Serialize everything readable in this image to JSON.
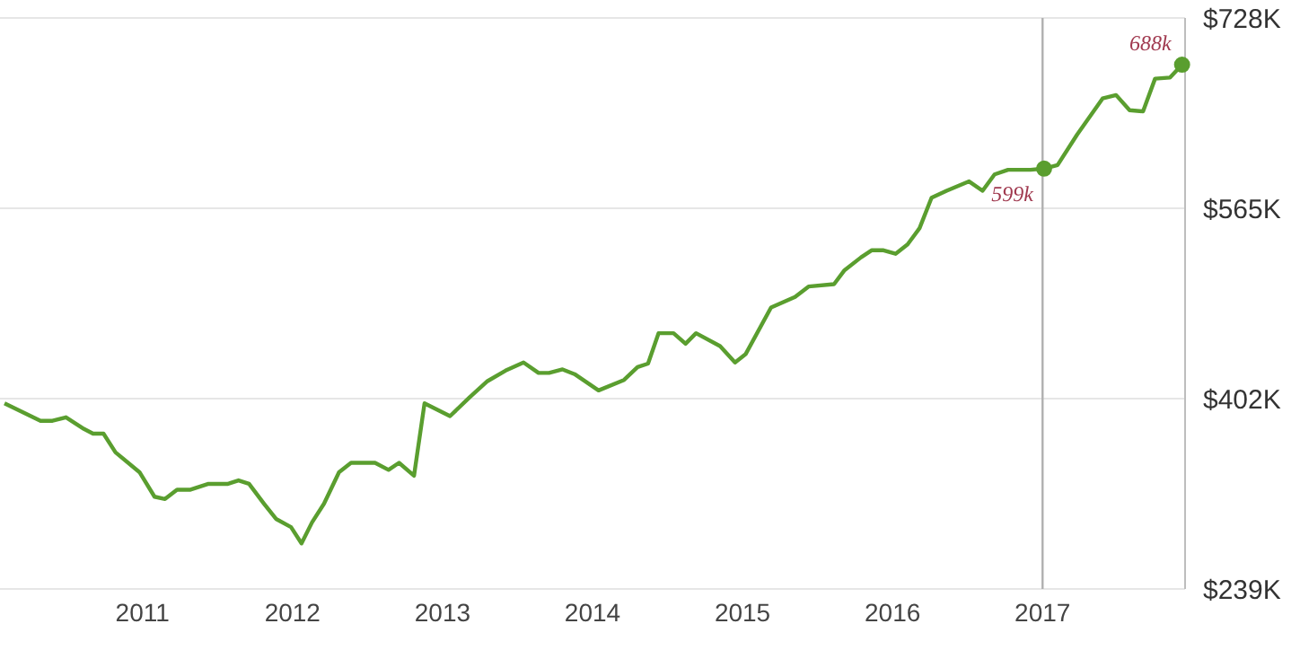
{
  "chart_data": {
    "type": "line",
    "x": [
      2010.08,
      2010.32,
      2010.4,
      2010.49,
      2010.61,
      2010.67,
      2010.74,
      2010.82,
      2010.98,
      2011.08,
      2011.15,
      2011.23,
      2011.32,
      2011.44,
      2011.57,
      2011.64,
      2011.71,
      2011.81,
      2011.89,
      2011.99,
      2012.06,
      2012.13,
      2012.21,
      2012.31,
      2012.39,
      2012.55,
      2012.64,
      2012.71,
      2012.81,
      2012.88,
      2013.05,
      2013.18,
      2013.3,
      2013.42,
      2013.54,
      2013.64,
      2013.71,
      2013.8,
      2013.88,
      2014.04,
      2014.21,
      2014.3,
      2014.37,
      2014.44,
      2014.54,
      2014.62,
      2014.69,
      2014.85,
      2014.95,
      2015.02,
      2015.19,
      2015.35,
      2015.44,
      2015.61,
      2015.68,
      2015.79,
      2015.86,
      2015.94,
      2016.02,
      2016.1,
      2016.18,
      2016.26,
      2016.36,
      2016.51,
      2016.6,
      2016.68,
      2016.77,
      2016.92,
      2017.01,
      2017.1,
      2017.23,
      2017.4,
      2017.49,
      2017.58,
      2017.67,
      2017.75,
      2017.85,
      2017.93
    ],
    "series": [
      {
        "color": "#5a9e2f",
        "values": [
          398,
          383,
          383,
          386,
          376,
          372,
          372,
          356,
          339,
          318,
          316,
          324,
          324,
          329,
          329,
          332,
          329,
          312,
          299,
          292,
          278,
          296,
          312,
          339,
          347,
          347,
          341,
          347,
          336,
          398,
          387,
          403,
          417,
          426,
          433,
          424,
          424,
          427,
          423,
          409,
          418,
          429,
          432,
          458,
          458,
          449,
          458,
          447,
          433,
          440,
          480,
          489,
          498,
          500,
          512,
          523,
          529,
          529,
          526,
          534,
          548,
          574,
          580,
          588,
          580,
          594,
          598,
          598,
          599,
          602,
          628,
          659,
          662,
          649,
          648,
          676,
          677,
          688
        ]
      }
    ],
    "xlim": [
      2010.05,
      2017.95
    ],
    "xticks": [
      2011,
      2012,
      2013,
      2014,
      2015,
      2016,
      2017
    ],
    "ylim": [
      239,
      728
    ],
    "yticks": [
      {
        "value": 239,
        "label": "$239K"
      },
      {
        "value": 402,
        "label": "$402K"
      },
      {
        "value": 565,
        "label": "$565K"
      },
      {
        "value": 728,
        "label": "$728K"
      }
    ],
    "grid": "y",
    "marker": "none",
    "line_style": "solid",
    "legend": false,
    "ref_lines": [
      {
        "axis": "x",
        "value": 2017,
        "color": "#b0b0b0"
      }
    ],
    "annotations": [
      {
        "text": "599k",
        "x": 2017.01,
        "y": 599
      },
      {
        "text": "688k",
        "x": 2017.93,
        "y": 688
      }
    ]
  }
}
